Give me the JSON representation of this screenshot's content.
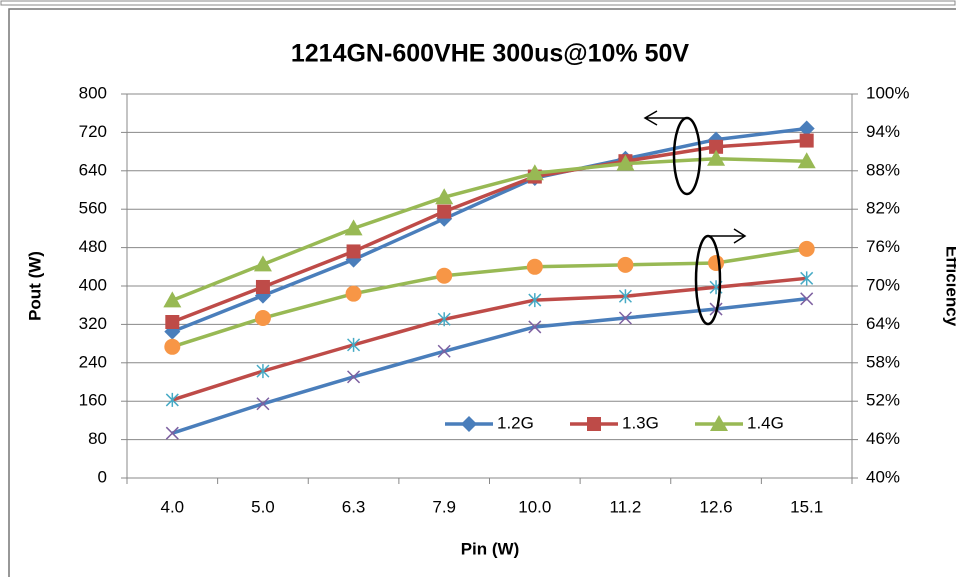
{
  "chart_data": {
    "type": "line",
    "title": "1214GN-600VHE 300us@10% 50V",
    "xlabel": "Pin (W)",
    "ylabel": "Pout (W)",
    "y2label": "Efficiency",
    "categories": [
      "4.0",
      "5.0",
      "6.3",
      "7.9",
      "10.0",
      "11.2",
      "12.6",
      "15.1"
    ],
    "ylim": [
      0,
      800
    ],
    "yticks": [
      0,
      80,
      160,
      240,
      320,
      400,
      480,
      560,
      640,
      720,
      800
    ],
    "y2lim": [
      40,
      100
    ],
    "y2ticks": [
      {
        "value": 40,
        "label": "40%"
      },
      {
        "value": 46,
        "label": "46%"
      },
      {
        "value": 52,
        "label": "52%"
      },
      {
        "value": 58,
        "label": "58%"
      },
      {
        "value": 64,
        "label": "64%"
      },
      {
        "value": 70,
        "label": "70%"
      },
      {
        "value": 76,
        "label": "76%"
      },
      {
        "value": 82,
        "label": "82%"
      },
      {
        "value": 88,
        "label": "88%"
      },
      {
        "value": 94,
        "label": "94%"
      },
      {
        "value": 100,
        "label": "100%"
      }
    ],
    "grid": true,
    "legend": "lower right",
    "series": [
      {
        "name": "1.2G",
        "color": "#4a7ebb",
        "marker": "diamond",
        "marker_color": "#4a7ebb",
        "values": [
          305,
          380,
          455,
          540,
          625,
          665,
          705,
          728
        ]
      },
      {
        "name": "1.3G",
        "color": "#be4b48",
        "marker": "square",
        "marker_color": "#be4b48",
        "values": [
          325,
          398,
          472,
          555,
          628,
          660,
          690,
          703
        ]
      },
      {
        "name": "1.4G",
        "color": "#98b954",
        "marker": "triangle",
        "marker_color": "#98b954",
        "values": [
          370,
          445,
          520,
          585,
          635,
          655,
          665,
          660
        ]
      },
      {
        "axis": "y2",
        "color": "#4a7ebb",
        "marker": "x",
        "marker_color": "#7d60a0",
        "values": [
          47.0,
          51.6,
          55.8,
          59.8,
          63.6,
          65.0,
          66.4,
          68.0
        ]
      },
      {
        "axis": "y2",
        "color": "#be4b48",
        "marker": "star",
        "marker_color": "#46aac5",
        "values": [
          52.2,
          56.7,
          60.8,
          64.8,
          67.8,
          68.4,
          69.8,
          71.2
        ]
      },
      {
        "axis": "y2",
        "color": "#98b954",
        "marker": "circle",
        "marker_color": "#f79646",
        "values": [
          60.5,
          65.0,
          68.8,
          71.6,
          73.0,
          73.3,
          73.6,
          75.8
        ]
      }
    ]
  }
}
